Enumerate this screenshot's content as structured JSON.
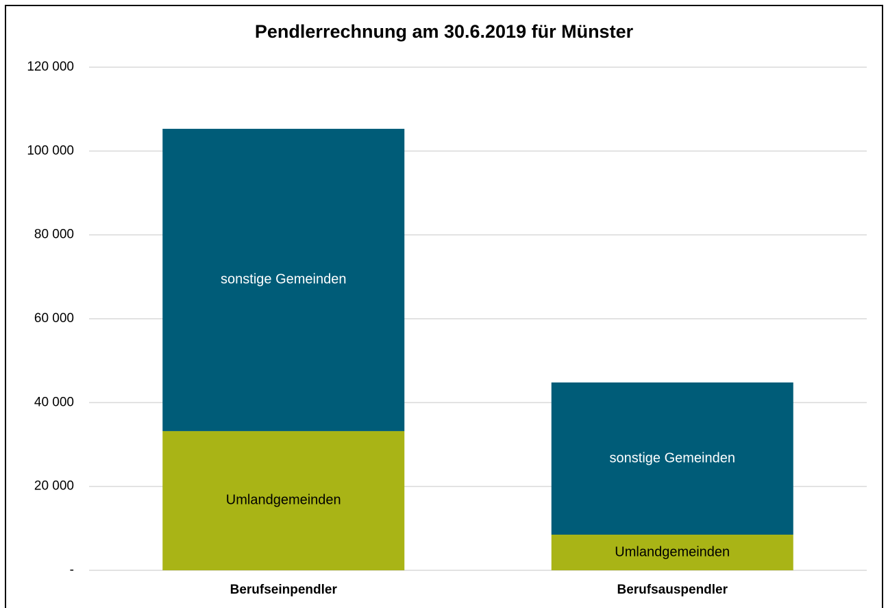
{
  "chart_data": {
    "type": "stacked_bar",
    "title": "Pendlerrechnung am 30.6.2019 für Münster",
    "categories": [
      "Berufseinpendler",
      "Berufsauspendler"
    ],
    "series": [
      {
        "name": "Umlandgemeinden",
        "color": "#a9b416",
        "values": [
          33200,
          8500
        ]
      },
      {
        "name": "sonstige Gemeinden",
        "color": "#005c78",
        "values": [
          72100,
          36300
        ]
      }
    ],
    "ylim": [
      0,
      120000
    ],
    "yticks": [
      {
        "value": 0,
        "label": "-"
      },
      {
        "value": 20000,
        "label": "20 000"
      },
      {
        "value": 40000,
        "label": "40 000"
      },
      {
        "value": 60000,
        "label": "60 000"
      },
      {
        "value": 80000,
        "label": "80 000"
      },
      {
        "value": 100000,
        "label": "100 000"
      },
      {
        "value": 120000,
        "label": "120 000"
      }
    ],
    "grid": true
  }
}
